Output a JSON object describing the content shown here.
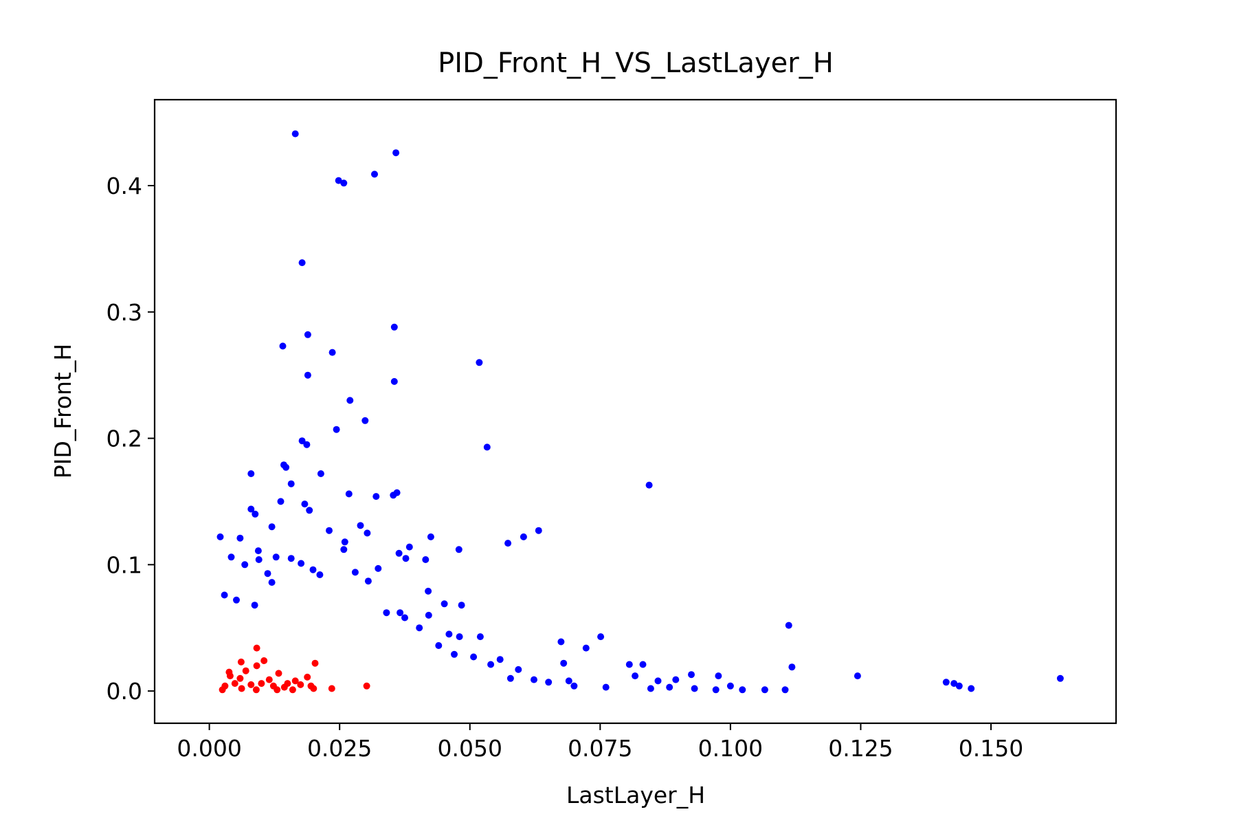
{
  "chart_data": {
    "type": "scatter",
    "title": "PID_Front_H_VS_LastLayer_H",
    "xlabel": "LastLayer_H",
    "ylabel": "PID_Front_H",
    "xlim": [
      -0.0105,
      0.174
    ],
    "ylim": [
      -0.0255,
      0.468
    ],
    "xticks": [
      0.0,
      0.025,
      0.05,
      0.075,
      0.1,
      0.125,
      0.15
    ],
    "xtick_labels": [
      "0.000",
      "0.025",
      "0.050",
      "0.075",
      "0.100",
      "0.125",
      "0.150"
    ],
    "yticks": [
      0.0,
      0.1,
      0.2,
      0.3,
      0.4
    ],
    "ytick_labels": [
      "0.0",
      "0.1",
      "0.2",
      "0.3",
      "0.4"
    ],
    "grid": false,
    "legend": "none",
    "series": [
      {
        "color": "#0000ff",
        "points": [
          [
            0.0165,
            0.441
          ],
          [
            0.0358,
            0.426
          ],
          [
            0.0317,
            0.409
          ],
          [
            0.0248,
            0.404
          ],
          [
            0.0258,
            0.402
          ],
          [
            0.0178,
            0.339
          ],
          [
            0.0355,
            0.288
          ],
          [
            0.0189,
            0.282
          ],
          [
            0.0141,
            0.273
          ],
          [
            0.0236,
            0.268
          ],
          [
            0.0518,
            0.26
          ],
          [
            0.0189,
            0.25
          ],
          [
            0.0355,
            0.245
          ],
          [
            0.027,
            0.23
          ],
          [
            0.0299,
            0.214
          ],
          [
            0.0244,
            0.207
          ],
          [
            0.0178,
            0.198
          ],
          [
            0.0187,
            0.195
          ],
          [
            0.0533,
            0.193
          ],
          [
            0.0143,
            0.179
          ],
          [
            0.0147,
            0.177
          ],
          [
            0.008,
            0.172
          ],
          [
            0.0214,
            0.172
          ],
          [
            0.0844,
            0.163
          ],
          [
            0.0157,
            0.164
          ],
          [
            0.036,
            0.157
          ],
          [
            0.0353,
            0.155
          ],
          [
            0.0268,
            0.156
          ],
          [
            0.032,
            0.154
          ],
          [
            0.0183,
            0.148
          ],
          [
            0.008,
            0.144
          ],
          [
            0.0137,
            0.15
          ],
          [
            0.0192,
            0.143
          ],
          [
            0.0088,
            0.14
          ],
          [
            0.0632,
            0.127
          ],
          [
            0.0603,
            0.122
          ],
          [
            0.0573,
            0.117
          ],
          [
            0.0425,
            0.122
          ],
          [
            0.0384,
            0.114
          ],
          [
            0.0479,
            0.112
          ],
          [
            0.0021,
            0.122
          ],
          [
            0.0059,
            0.121
          ],
          [
            0.012,
            0.13
          ],
          [
            0.029,
            0.131
          ],
          [
            0.0303,
            0.125
          ],
          [
            0.0415,
            0.104
          ],
          [
            0.0324,
            0.097
          ],
          [
            0.0364,
            0.109
          ],
          [
            0.0377,
            0.105
          ],
          [
            0.023,
            0.127
          ],
          [
            0.042,
            0.079
          ],
          [
            0.0421,
            0.06
          ],
          [
            0.0451,
            0.069
          ],
          [
            0.0484,
            0.068
          ],
          [
            0.034,
            0.062
          ],
          [
            0.0366,
            0.062
          ],
          [
            0.0375,
            0.058
          ],
          [
            0.0403,
            0.05
          ],
          [
            0.046,
            0.045
          ],
          [
            0.048,
            0.043
          ],
          [
            0.052,
            0.043
          ],
          [
            0.0675,
            0.039
          ],
          [
            0.0751,
            0.043
          ],
          [
            0.0723,
            0.034
          ],
          [
            0.1112,
            0.052
          ],
          [
            0.1118,
            0.019
          ],
          [
            0.1244,
            0.012
          ],
          [
            0.0832,
            0.021
          ],
          [
            0.0806,
            0.021
          ],
          [
            0.0817,
            0.012
          ],
          [
            0.0925,
            0.013
          ],
          [
            0.0977,
            0.012
          ],
          [
            0.0895,
            0.009
          ],
          [
            0.0861,
            0.008
          ],
          [
            0.0847,
            0.002
          ],
          [
            0.0883,
            0.003
          ],
          [
            0.0931,
            0.002
          ],
          [
            0.0972,
            0.001
          ],
          [
            0.1,
            0.004
          ],
          [
            0.1023,
            0.001
          ],
          [
            0.1066,
            0.001
          ],
          [
            0.1105,
            0.001
          ],
          [
            0.1414,
            0.007
          ],
          [
            0.1429,
            0.006
          ],
          [
            0.1439,
            0.004
          ],
          [
            0.1462,
            0.002
          ],
          [
            0.1633,
            0.01
          ],
          [
            0.068,
            0.022
          ],
          [
            0.0593,
            0.017
          ],
          [
            0.0578,
            0.01
          ],
          [
            0.07,
            0.004
          ],
          [
            0.0761,
            0.003
          ],
          [
            0.069,
            0.008
          ],
          [
            0.0623,
            0.009
          ],
          [
            0.0651,
            0.007
          ],
          [
            0.0558,
            0.025
          ],
          [
            0.054,
            0.021
          ],
          [
            0.0507,
            0.027
          ],
          [
            0.047,
            0.029
          ],
          [
            0.044,
            0.036
          ],
          [
            0.0029,
            0.076
          ],
          [
            0.0042,
            0.106
          ],
          [
            0.0068,
            0.1
          ],
          [
            0.0095,
            0.104
          ],
          [
            0.0112,
            0.093
          ],
          [
            0.0128,
            0.106
          ],
          [
            0.0157,
            0.105
          ],
          [
            0.0176,
            0.101
          ],
          [
            0.0199,
            0.096
          ],
          [
            0.0212,
            0.092
          ],
          [
            0.0258,
            0.112
          ],
          [
            0.026,
            0.118
          ],
          [
            0.028,
            0.094
          ],
          [
            0.0305,
            0.087
          ],
          [
            0.0094,
            0.111
          ],
          [
            0.012,
            0.086
          ],
          [
            0.0087,
            0.068
          ],
          [
            0.0052,
            0.072
          ]
        ]
      },
      {
        "color": "#ff0000",
        "points": [
          [
            0.0091,
            0.034
          ],
          [
            0.0105,
            0.024
          ],
          [
            0.0061,
            0.023
          ],
          [
            0.0203,
            0.022
          ],
          [
            0.0091,
            0.02
          ],
          [
            0.0038,
            0.015
          ],
          [
            0.004,
            0.012
          ],
          [
            0.0059,
            0.01
          ],
          [
            0.0133,
            0.014
          ],
          [
            0.0188,
            0.011
          ],
          [
            0.0302,
            0.004
          ],
          [
            0.0235,
            0.002
          ],
          [
            0.007,
            0.016
          ],
          [
            0.0115,
            0.009
          ],
          [
            0.015,
            0.006
          ],
          [
            0.0175,
            0.005
          ],
          [
            0.0165,
            0.008
          ],
          [
            0.0195,
            0.004
          ],
          [
            0.02,
            0.002
          ],
          [
            0.003,
            0.004
          ],
          [
            0.0049,
            0.006
          ],
          [
            0.008,
            0.005
          ],
          [
            0.01,
            0.006
          ],
          [
            0.0123,
            0.004
          ],
          [
            0.0144,
            0.003
          ],
          [
            0.0025,
            0.001
          ],
          [
            0.0062,
            0.002
          ],
          [
            0.009,
            0.001
          ],
          [
            0.013,
            0.001
          ],
          [
            0.016,
            0.001
          ]
        ]
      }
    ]
  }
}
